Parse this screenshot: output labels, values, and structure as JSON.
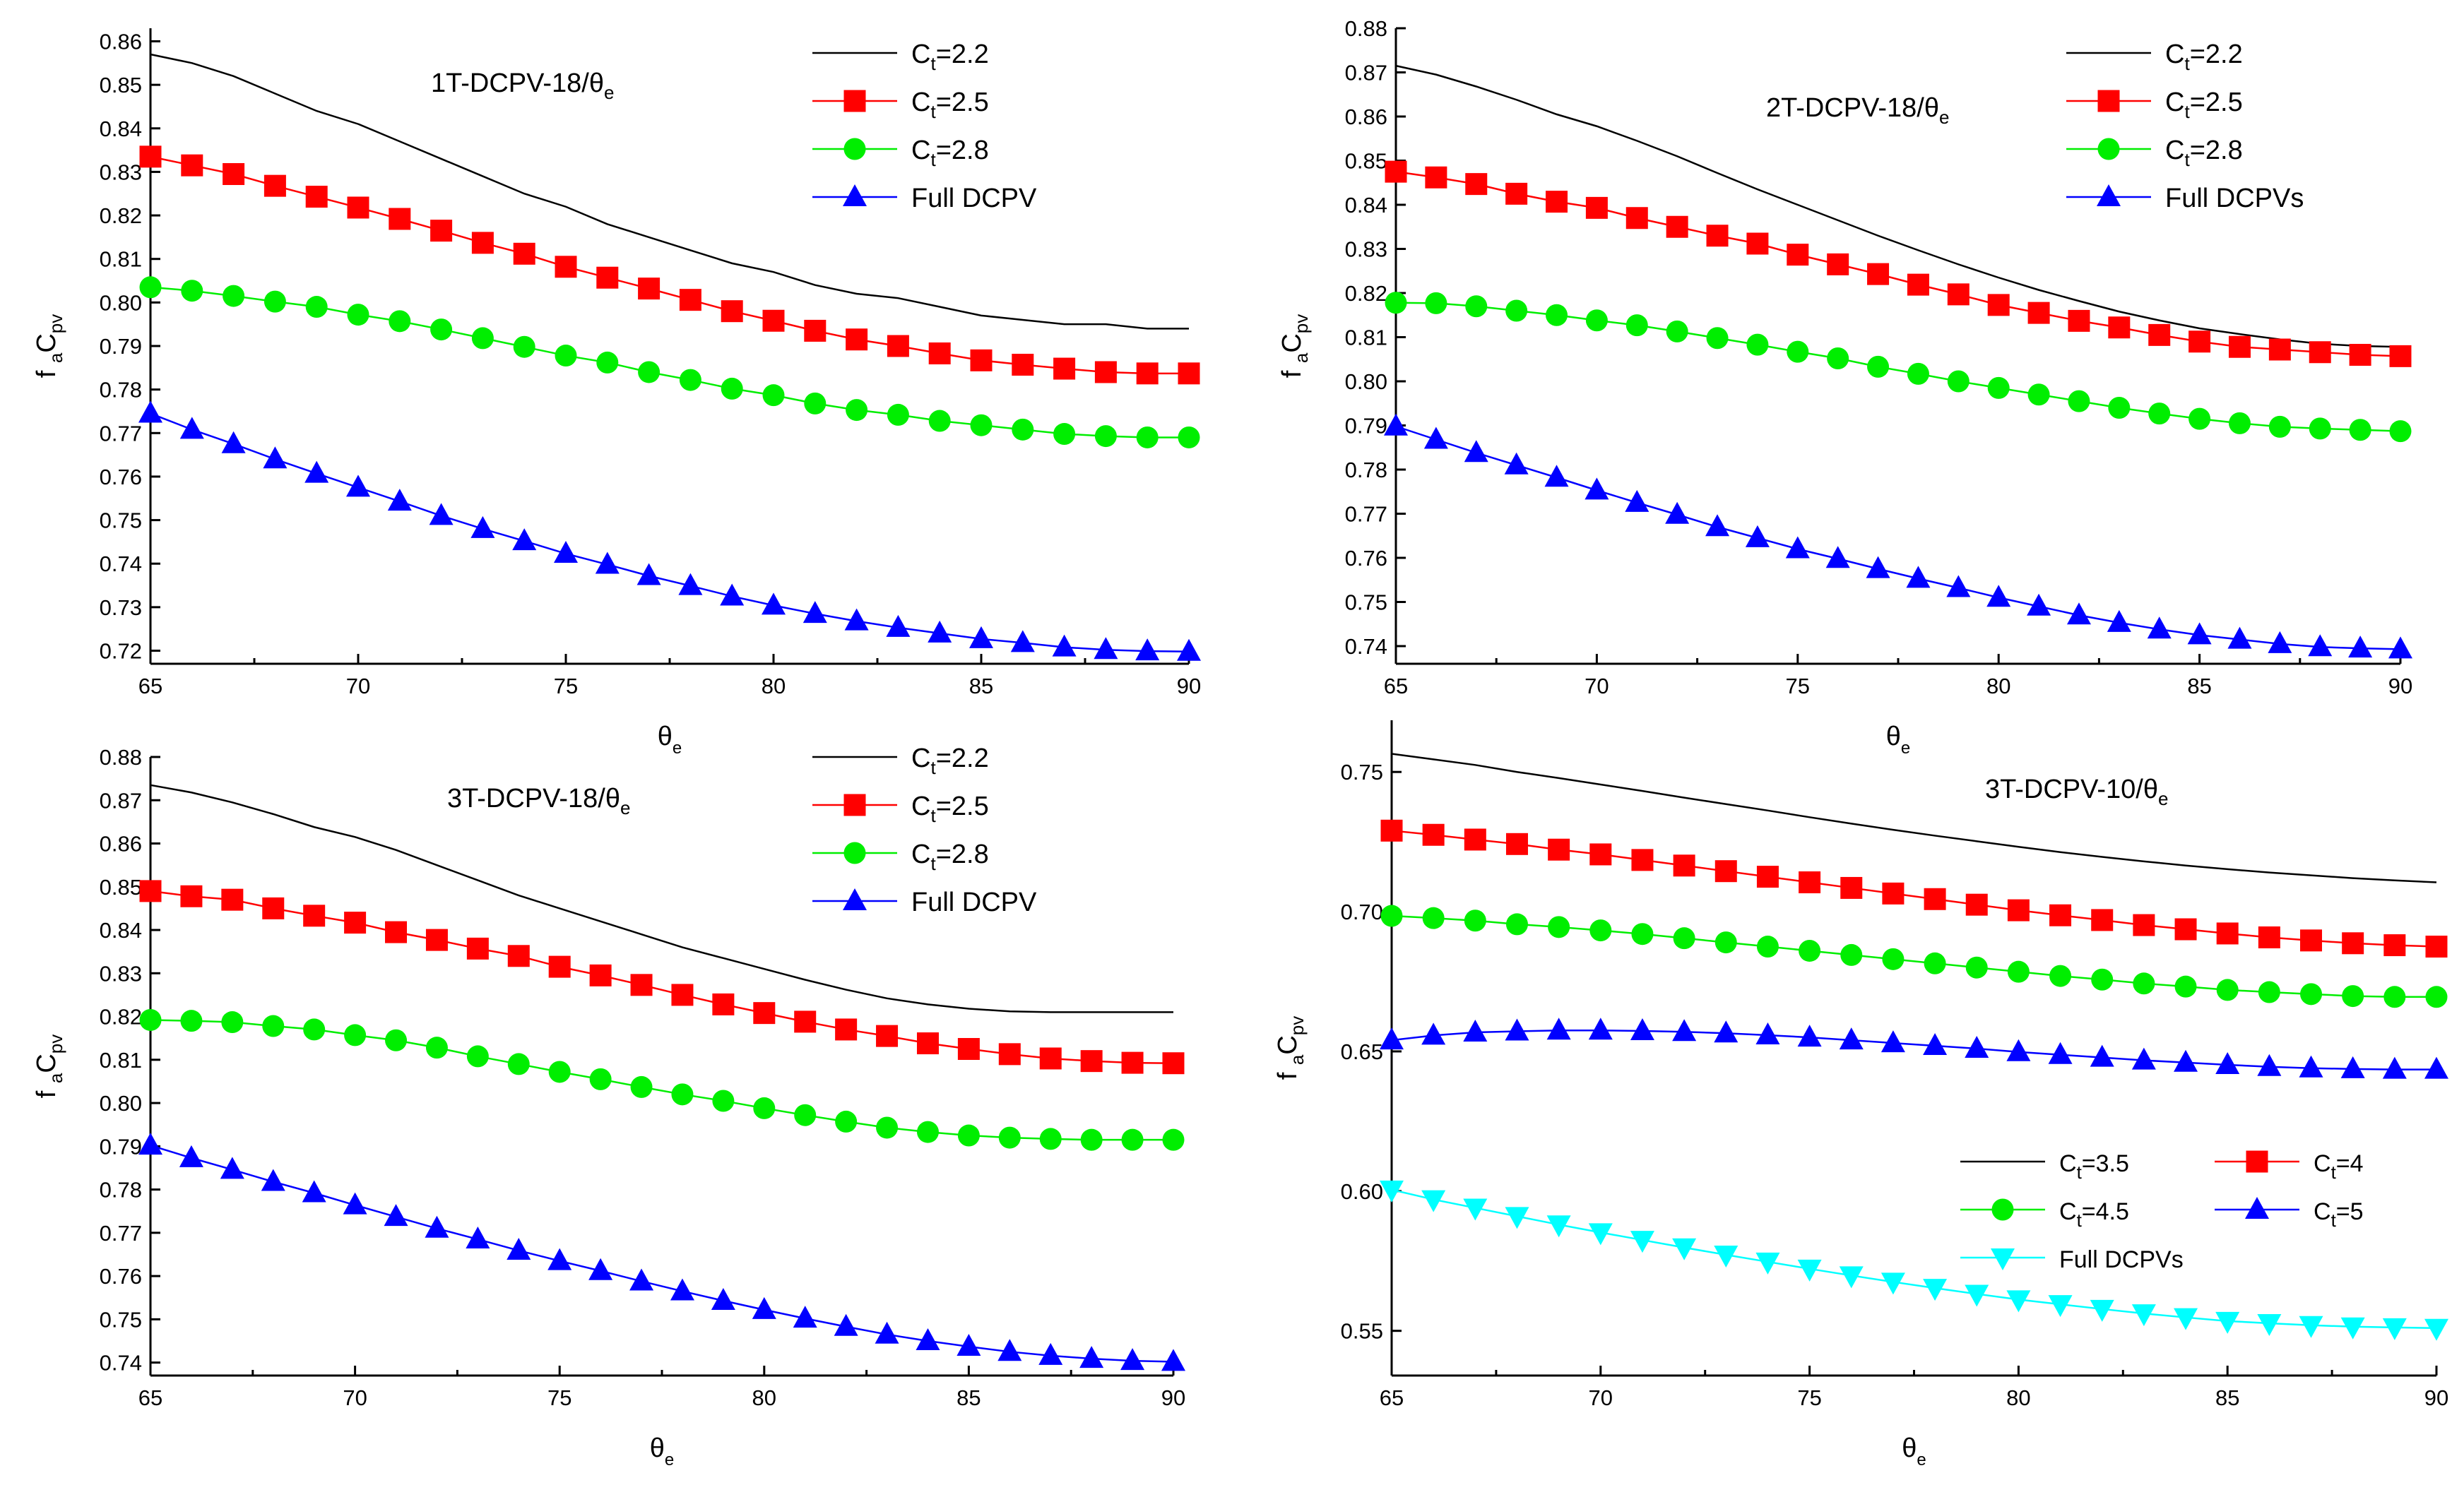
{
  "chart_data": [
    {
      "type": "line",
      "panel": "top-left",
      "annotation": {
        "main": "1T-DCPV-18/θ",
        "sub": "e"
      },
      "xlabel": {
        "main": "θ",
        "sub": "e"
      },
      "ylabel": {
        "a": "f",
        "a_sub": "a",
        "b": "C",
        "b_sub": "pv"
      },
      "xlim": [
        65,
        90
      ],
      "ylim": [
        0.717,
        0.863
      ],
      "xticks": [
        "65",
        "70",
        "75",
        "80",
        "85",
        "90"
      ],
      "yticks": [
        "0.72",
        "0.73",
        "0.74",
        "0.75",
        "0.76",
        "0.77",
        "0.78",
        "0.79",
        "0.80",
        "0.81",
        "0.82",
        "0.83",
        "0.84",
        "0.85",
        "0.86"
      ],
      "x": [
        65,
        66,
        67,
        68,
        69,
        70,
        71,
        72,
        73,
        74,
        75,
        76,
        77,
        78,
        79,
        80,
        81,
        82,
        83,
        84,
        85,
        86,
        87,
        88,
        89,
        90
      ],
      "legend_position": "top-right",
      "series": [
        {
          "name": "2.2",
          "label_prefix": "C",
          "label_sub": "t",
          "label_suffix": "=2.2",
          "color": "#000000",
          "marker": "none",
          "values": [
            0.857,
            0.855,
            0.852,
            0.848,
            0.844,
            0.841,
            0.837,
            0.833,
            0.829,
            0.825,
            0.822,
            0.818,
            0.815,
            0.812,
            0.809,
            0.807,
            0.804,
            0.802,
            0.801,
            0.799,
            0.797,
            0.796,
            0.795,
            0.795,
            0.794,
            0.794
          ]
        },
        {
          "name": "2.5",
          "label_prefix": "C",
          "label_sub": "t",
          "label_suffix": "=2.5",
          "color": "#ff0000",
          "marker": "square",
          "values": [
            0.8335,
            0.8315,
            0.8295,
            0.8268,
            0.8243,
            0.8218,
            0.8192,
            0.8165,
            0.8137,
            0.8112,
            0.8082,
            0.8057,
            0.8032,
            0.8006,
            0.798,
            0.7958,
            0.7935,
            0.7915,
            0.79,
            0.7883,
            0.7867,
            0.7857,
            0.7848,
            0.784,
            0.7837,
            0.7837
          ]
        },
        {
          "name": "2.8",
          "label_prefix": "C",
          "label_sub": "t",
          "label_suffix": "=2.8",
          "color": "#00ee00",
          "marker": "circle",
          "values": [
            0.8035,
            0.8027,
            0.8015,
            0.8002,
            0.799,
            0.7972,
            0.7957,
            0.7938,
            0.7918,
            0.7898,
            0.7878,
            0.7862,
            0.784,
            0.7822,
            0.7802,
            0.7787,
            0.7768,
            0.7753,
            0.7742,
            0.7728,
            0.7718,
            0.7708,
            0.7698,
            0.7693,
            0.769,
            0.769
          ]
        },
        {
          "name": "Full DCPV",
          "label_prefix": "Full DCPV",
          "label_sub": "",
          "label_suffix": "",
          "color": "#0000ff",
          "marker": "triangle-up",
          "values": [
            0.7745,
            0.7708,
            0.7675,
            0.764,
            0.7607,
            0.7575,
            0.7543,
            0.751,
            0.748,
            0.7452,
            0.7423,
            0.7398,
            0.7372,
            0.7349,
            0.7325,
            0.7304,
            0.7285,
            0.7268,
            0.7253,
            0.724,
            0.7227,
            0.7218,
            0.7208,
            0.7202,
            0.7199,
            0.7198
          ]
        }
      ]
    },
    {
      "type": "line",
      "panel": "top-right",
      "annotation": {
        "main": "2T-DCPV-18/θ",
        "sub": "e"
      },
      "xlabel": {
        "main": "θ",
        "sub": "e"
      },
      "ylabel": {
        "a": "f",
        "a_sub": "a",
        "b": "C",
        "b_sub": "pv"
      },
      "xlim": [
        65,
        90
      ],
      "ylim": [
        0.736,
        0.88
      ],
      "xticks": [
        "65",
        "70",
        "75",
        "80",
        "85",
        "90"
      ],
      "yticks": [
        "0.74",
        "0.75",
        "0.76",
        "0.77",
        "0.78",
        "0.79",
        "0.80",
        "0.81",
        "0.82",
        "0.83",
        "0.84",
        "0.85",
        "0.86",
        "0.87",
        "0.88"
      ],
      "x": [
        65,
        66,
        67,
        68,
        69,
        70,
        71,
        72,
        73,
        74,
        75,
        76,
        77,
        78,
        79,
        80,
        81,
        82,
        83,
        84,
        85,
        86,
        87,
        88,
        89,
        90
      ],
      "legend_position": "top-right",
      "series": [
        {
          "name": "2.2",
          "label_prefix": "C",
          "label_sub": "t",
          "label_suffix": "=2.2",
          "color": "#000000",
          "marker": "none",
          "values": [
            0.8715,
            0.8695,
            0.8668,
            0.8638,
            0.8605,
            0.8578,
            0.8545,
            0.851,
            0.8472,
            0.8435,
            0.84,
            0.8365,
            0.833,
            0.8297,
            0.8265,
            0.8235,
            0.8207,
            0.8182,
            0.8158,
            0.8138,
            0.812,
            0.8107,
            0.8095,
            0.8085,
            0.808,
            0.8078
          ]
        },
        {
          "name": "2.5",
          "label_prefix": "C",
          "label_sub": "t",
          "label_suffix": "=2.5",
          "color": "#ff0000",
          "marker": "square",
          "values": [
            0.8475,
            0.8462,
            0.8447,
            0.8425,
            0.8407,
            0.8393,
            0.837,
            0.835,
            0.833,
            0.8312,
            0.8287,
            0.8265,
            0.8243,
            0.8219,
            0.8197,
            0.8173,
            0.8155,
            0.8137,
            0.8122,
            0.8105,
            0.809,
            0.8078,
            0.8072,
            0.8066,
            0.806,
            0.8057
          ]
        },
        {
          "name": "2.8",
          "label_prefix": "C",
          "label_sub": "t",
          "label_suffix": "=2.8",
          "color": "#00ee00",
          "marker": "circle",
          "values": [
            0.8178,
            0.8177,
            0.817,
            0.816,
            0.815,
            0.8138,
            0.8127,
            0.8113,
            0.8098,
            0.8083,
            0.8067,
            0.8052,
            0.8033,
            0.8017,
            0.8,
            0.7985,
            0.797,
            0.7955,
            0.794,
            0.7927,
            0.7915,
            0.7905,
            0.7897,
            0.7893,
            0.789,
            0.7887
          ]
        },
        {
          "name": "Full DCPVs",
          "label_prefix": "Full DCPVs",
          "label_sub": "",
          "label_suffix": "",
          "color": "#0000ff",
          "marker": "triangle-up",
          "values": [
            0.7898,
            0.7868,
            0.7838,
            0.781,
            0.7782,
            0.7753,
            0.7725,
            0.7698,
            0.767,
            0.7645,
            0.762,
            0.7598,
            0.7575,
            0.7553,
            0.7532,
            0.751,
            0.749,
            0.747,
            0.7453,
            0.7438,
            0.7425,
            0.7415,
            0.7405,
            0.7398,
            0.7395,
            0.7393
          ]
        }
      ]
    },
    {
      "type": "line",
      "panel": "bottom-left",
      "annotation": {
        "main": "3T-DCPV-18/θ",
        "sub": "e"
      },
      "xlabel": {
        "main": "θ",
        "sub": "e"
      },
      "ylabel": {
        "a": "f",
        "a_sub": "a",
        "b": "C",
        "b_sub": "pv"
      },
      "xlim": [
        65,
        90
      ],
      "ylim": [
        0.737,
        0.88
      ],
      "xticks": [
        "65",
        "70",
        "75",
        "80",
        "85",
        "90"
      ],
      "yticks": [
        "0.74",
        "0.75",
        "0.76",
        "0.77",
        "0.78",
        "0.79",
        "0.80",
        "0.81",
        "0.82",
        "0.83",
        "0.84",
        "0.85",
        "0.86",
        "0.87",
        "0.88"
      ],
      "x": [
        65,
        66,
        67,
        68,
        69,
        70,
        71,
        72,
        73,
        74,
        75,
        76,
        77,
        78,
        79,
        80,
        81,
        82,
        83,
        84,
        85,
        86,
        87,
        88,
        89,
        90
      ],
      "legend_position": "top-right",
      "series": [
        {
          "name": "2.2",
          "label_prefix": "C",
          "label_sub": "t",
          "label_suffix": "=2.2",
          "color": "#000000",
          "marker": "none",
          "values": [
            0.8735,
            0.8718,
            0.8695,
            0.8668,
            0.8638,
            0.8615,
            0.8585,
            0.855,
            0.8515,
            0.848,
            0.845,
            0.842,
            0.839,
            0.836,
            0.8335,
            0.831,
            0.8285,
            0.8262,
            0.8242,
            0.8228,
            0.8218,
            0.8212,
            0.821,
            0.821,
            0.821,
            0.821
          ]
        },
        {
          "name": "2.5",
          "label_prefix": "C",
          "label_sub": "t",
          "label_suffix": "=2.5",
          "color": "#ff0000",
          "marker": "square",
          "values": [
            0.849,
            0.8478,
            0.847,
            0.845,
            0.8433,
            0.8417,
            0.8395,
            0.8377,
            0.8357,
            0.834,
            0.8315,
            0.8295,
            0.8273,
            0.825,
            0.8228,
            0.8208,
            0.8188,
            0.817,
            0.8155,
            0.8138,
            0.8125,
            0.8113,
            0.8103,
            0.8097,
            0.8093,
            0.8092
          ]
        },
        {
          "name": "2.8",
          "label_prefix": "C",
          "label_sub": "t",
          "label_suffix": "=2.8",
          "color": "#00ee00",
          "marker": "circle",
          "values": [
            0.8192,
            0.819,
            0.8187,
            0.8178,
            0.817,
            0.8157,
            0.8145,
            0.8128,
            0.8108,
            0.809,
            0.8072,
            0.8055,
            0.8037,
            0.802,
            0.8005,
            0.7988,
            0.7972,
            0.7957,
            0.7943,
            0.7933,
            0.7925,
            0.792,
            0.7917,
            0.7915,
            0.7915,
            0.7915
          ]
        },
        {
          "name": "Full DCPV",
          "label_prefix": "Full DCPV",
          "label_sub": "",
          "label_suffix": "",
          "color": "#0000ff",
          "marker": "triangle-up",
          "values": [
            0.7902,
            0.7873,
            0.7846,
            0.7818,
            0.7792,
            0.7764,
            0.7737,
            0.771,
            0.7685,
            0.7659,
            0.7635,
            0.7612,
            0.7588,
            0.7565,
            0.7543,
            0.7522,
            0.7502,
            0.7483,
            0.7465,
            0.745,
            0.7437,
            0.7425,
            0.7416,
            0.7409,
            0.7404,
            0.7402
          ]
        }
      ]
    },
    {
      "type": "line",
      "panel": "bottom-right",
      "annotation": {
        "main": "3T-DCPV-10/θ",
        "sub": "e"
      },
      "xlabel": {
        "main": "θ",
        "sub": "e"
      },
      "ylabel": {
        "a": "f",
        "a_sub": "a",
        "b": "C",
        "b_sub": "pv"
      },
      "xlim": [
        65,
        90
      ],
      "ylim": [
        0.534,
        0.7685
      ],
      "xticks": [
        "65",
        "70",
        "75",
        "80",
        "85",
        "90"
      ],
      "yticks": [
        "0.55",
        "0.60",
        "0.65",
        "0.70",
        "0.75"
      ],
      "x": [
        65,
        66,
        67,
        68,
        69,
        70,
        71,
        72,
        73,
        74,
        75,
        76,
        77,
        78,
        79,
        80,
        81,
        82,
        83,
        84,
        85,
        86,
        87,
        88,
        89,
        90
      ],
      "legend_position": "bottom-right",
      "series": [
        {
          "name": "3.5",
          "label_prefix": "C",
          "label_sub": "t",
          "label_suffix": "=3.5",
          "color": "#000000",
          "marker": "none",
          "values": [
            0.7565,
            0.7545,
            0.7525,
            0.75,
            0.7478,
            0.7455,
            0.7432,
            0.7408,
            0.7385,
            0.7362,
            0.7338,
            0.7315,
            0.7293,
            0.7272,
            0.7252,
            0.7232,
            0.7213,
            0.7196,
            0.718,
            0.7165,
            0.7152,
            0.714,
            0.713,
            0.712,
            0.7112,
            0.7105
          ]
        },
        {
          "name": "4",
          "label_prefix": "C",
          "label_sub": "t",
          "label_suffix": "=4",
          "color": "#ff0000",
          "marker": "square",
          "values": [
            0.729,
            0.7275,
            0.7258,
            0.7242,
            0.7222,
            0.7205,
            0.7185,
            0.7165,
            0.7145,
            0.7125,
            0.7105,
            0.7085,
            0.7065,
            0.7045,
            0.7025,
            0.7005,
            0.6987,
            0.697,
            0.6952,
            0.6937,
            0.6922,
            0.6908,
            0.6897,
            0.6887,
            0.688,
            0.6875
          ]
        },
        {
          "name": "4.5",
          "label_prefix": "C",
          "label_sub": "t",
          "label_suffix": "=4.5",
          "color": "#00ee00",
          "marker": "circle",
          "values": [
            0.6985,
            0.6977,
            0.6968,
            0.6955,
            0.6945,
            0.6933,
            0.692,
            0.6905,
            0.689,
            0.6875,
            0.686,
            0.6845,
            0.683,
            0.6815,
            0.68,
            0.6785,
            0.677,
            0.6757,
            0.6743,
            0.6732,
            0.672,
            0.6712,
            0.6705,
            0.6698,
            0.6695,
            0.6695
          ]
        },
        {
          "name": "5",
          "label_prefix": "C",
          "label_sub": "t",
          "label_suffix": "=5",
          "color": "#0000ff",
          "marker": "triangle-up",
          "values": [
            0.654,
            0.6557,
            0.6568,
            0.6572,
            0.6575,
            0.6575,
            0.6573,
            0.657,
            0.6565,
            0.6558,
            0.655,
            0.654,
            0.653,
            0.652,
            0.651,
            0.6498,
            0.6488,
            0.6478,
            0.6468,
            0.646,
            0.6452,
            0.6445,
            0.644,
            0.6437,
            0.6435,
            0.6435
          ]
        },
        {
          "name": "Full DCPVs",
          "label_prefix": "Full DCPVs",
          "label_sub": "",
          "label_suffix": "",
          "color": "#00ffff",
          "marker": "triangle-down",
          "values": [
            0.6005,
            0.597,
            0.594,
            0.591,
            0.588,
            0.5852,
            0.5825,
            0.5798,
            0.5772,
            0.5747,
            0.5722,
            0.5698,
            0.5675,
            0.5653,
            0.5632,
            0.5612,
            0.5595,
            0.5578,
            0.5562,
            0.5548,
            0.5535,
            0.5527,
            0.552,
            0.5515,
            0.5512,
            0.551
          ]
        }
      ]
    }
  ]
}
